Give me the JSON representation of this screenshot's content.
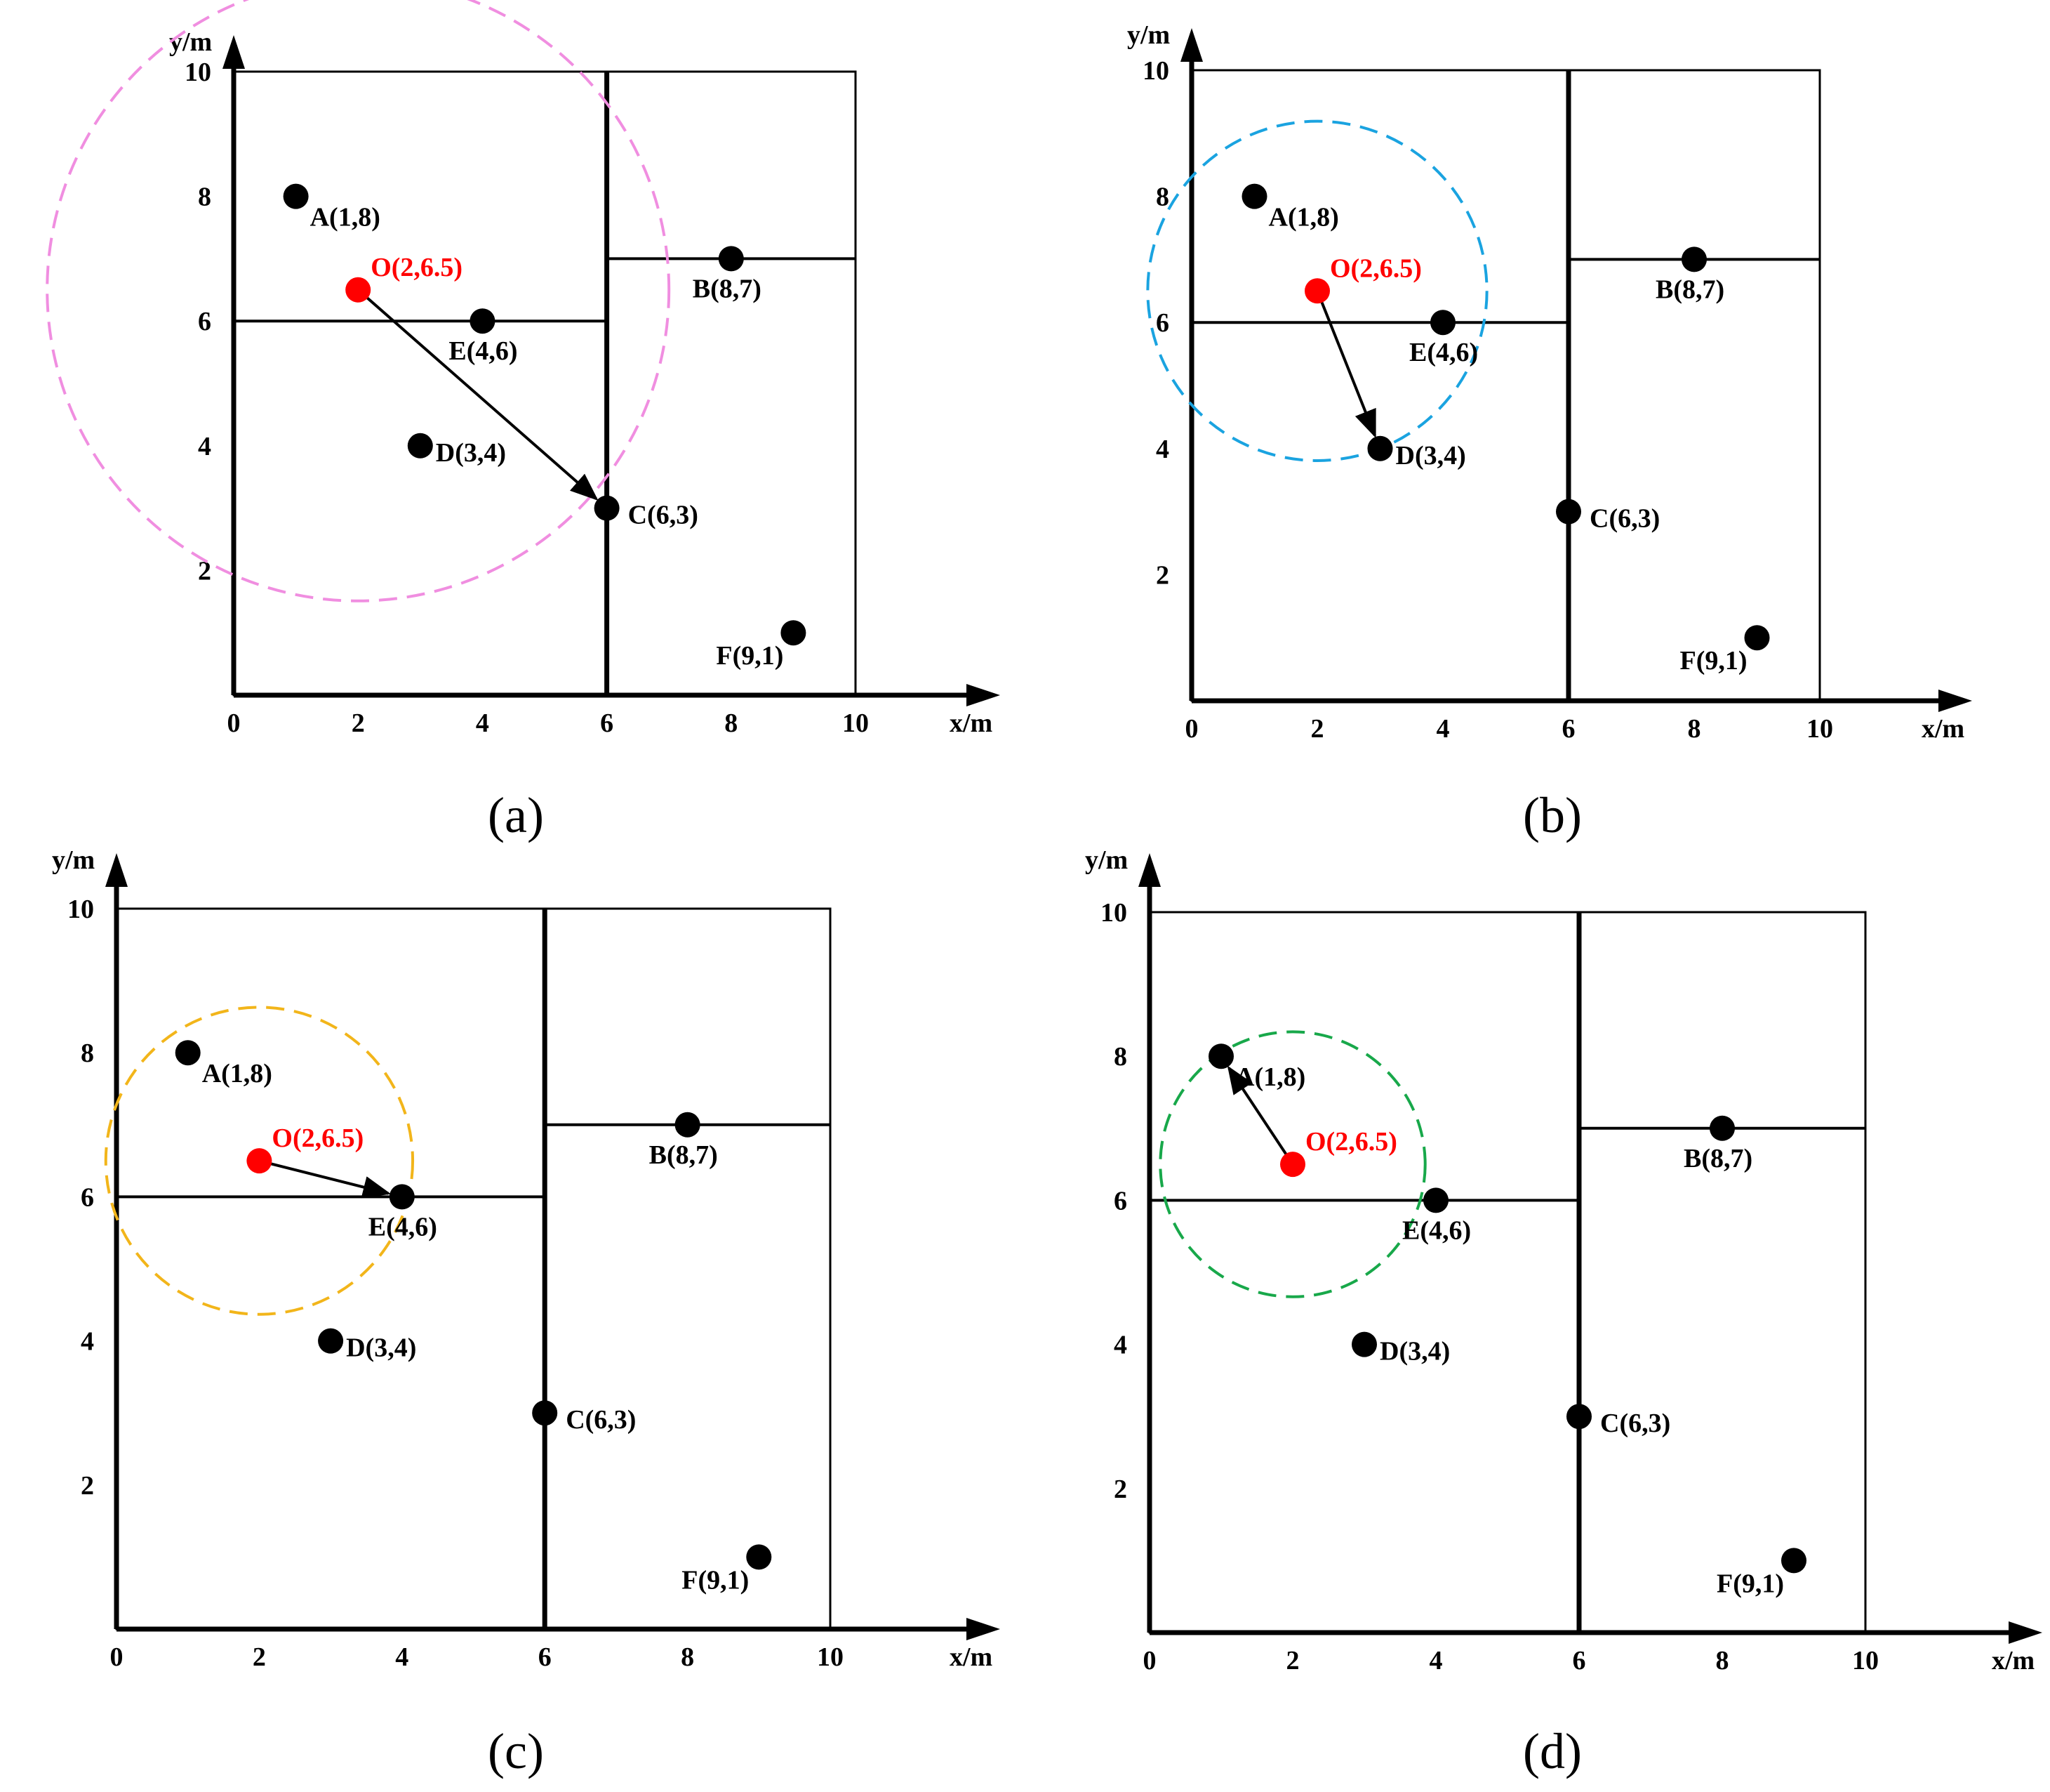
{
  "axes": {
    "x_label": "x/m",
    "y_label": "y/m",
    "x_ticks": [
      {
        "value": 0,
        "label": "0"
      },
      {
        "value": 2,
        "label": "2"
      },
      {
        "value": 4,
        "label": "4"
      },
      {
        "value": 6,
        "label": "6"
      },
      {
        "value": 8,
        "label": "8"
      },
      {
        "value": 10,
        "label": "10"
      }
    ],
    "y_ticks": [
      {
        "value": 2,
        "label": "2"
      },
      {
        "value": 4,
        "label": "4"
      },
      {
        "value": 6,
        "label": "6"
      },
      {
        "value": 8,
        "label": "8"
      },
      {
        "value": 10,
        "label": "10"
      }
    ]
  },
  "rooms": {
    "outer": {
      "x0": 0,
      "x1": 10,
      "y0": 0,
      "y1": 10
    },
    "thick_divider": {
      "x": 6,
      "y0": 0,
      "y1": 10
    },
    "left_divider": {
      "x0": 0,
      "x1": 6,
      "y": 6
    },
    "right_divider": {
      "x0": 6,
      "x1": 10,
      "y": 7
    }
  },
  "origin": {
    "name": "O",
    "label": "O(2,6.5)",
    "x": 2,
    "y": 6.5,
    "color": "#ff0000"
  },
  "points": [
    {
      "name": "A",
      "label": "A(1,8)",
      "x": 1,
      "y": 8
    },
    {
      "name": "B",
      "label": "B(8,7)",
      "x": 8,
      "y": 7
    },
    {
      "name": "C",
      "label": "C(6,3)",
      "x": 6,
      "y": 3
    },
    {
      "name": "D",
      "label": "D(3,4)",
      "x": 3,
      "y": 4
    },
    {
      "name": "E",
      "label": "E(4,6)",
      "x": 4,
      "y": 6
    },
    {
      "name": "F",
      "label": "F(9,1)",
      "x": 9,
      "y": 1
    }
  ],
  "panels": [
    {
      "id": "a",
      "caption": "(a)",
      "target": "C",
      "circle_radius": 5,
      "circle_color": "#f08ee0"
    },
    {
      "id": "b",
      "caption": "(b)",
      "target": "D",
      "circle_radius": 2.7,
      "circle_color": "#1aa3e0"
    },
    {
      "id": "c",
      "caption": "(c)",
      "target": "E",
      "circle_radius": 2.15,
      "circle_color": "#f2b51a"
    },
    {
      "id": "d",
      "caption": "(d)",
      "target": "A",
      "circle_radius": 1.85,
      "circle_color": "#18a84a"
    }
  ]
}
